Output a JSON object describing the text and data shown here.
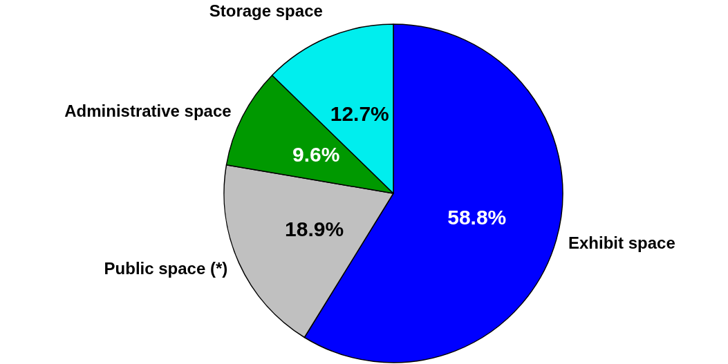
{
  "chart_data": {
    "type": "pie",
    "categories": [
      "Exhibit space",
      "Public space (*)",
      "Administrative space",
      "Storage space"
    ],
    "values": [
      58.8,
      18.9,
      9.6,
      12.7
    ],
    "value_labels": [
      "58.8%",
      "18.9%",
      "9.6%",
      "12.7%"
    ],
    "colors": [
      "#0000ff",
      "#c0c0c0",
      "#009900",
      "#00eeee"
    ],
    "legend": false
  }
}
